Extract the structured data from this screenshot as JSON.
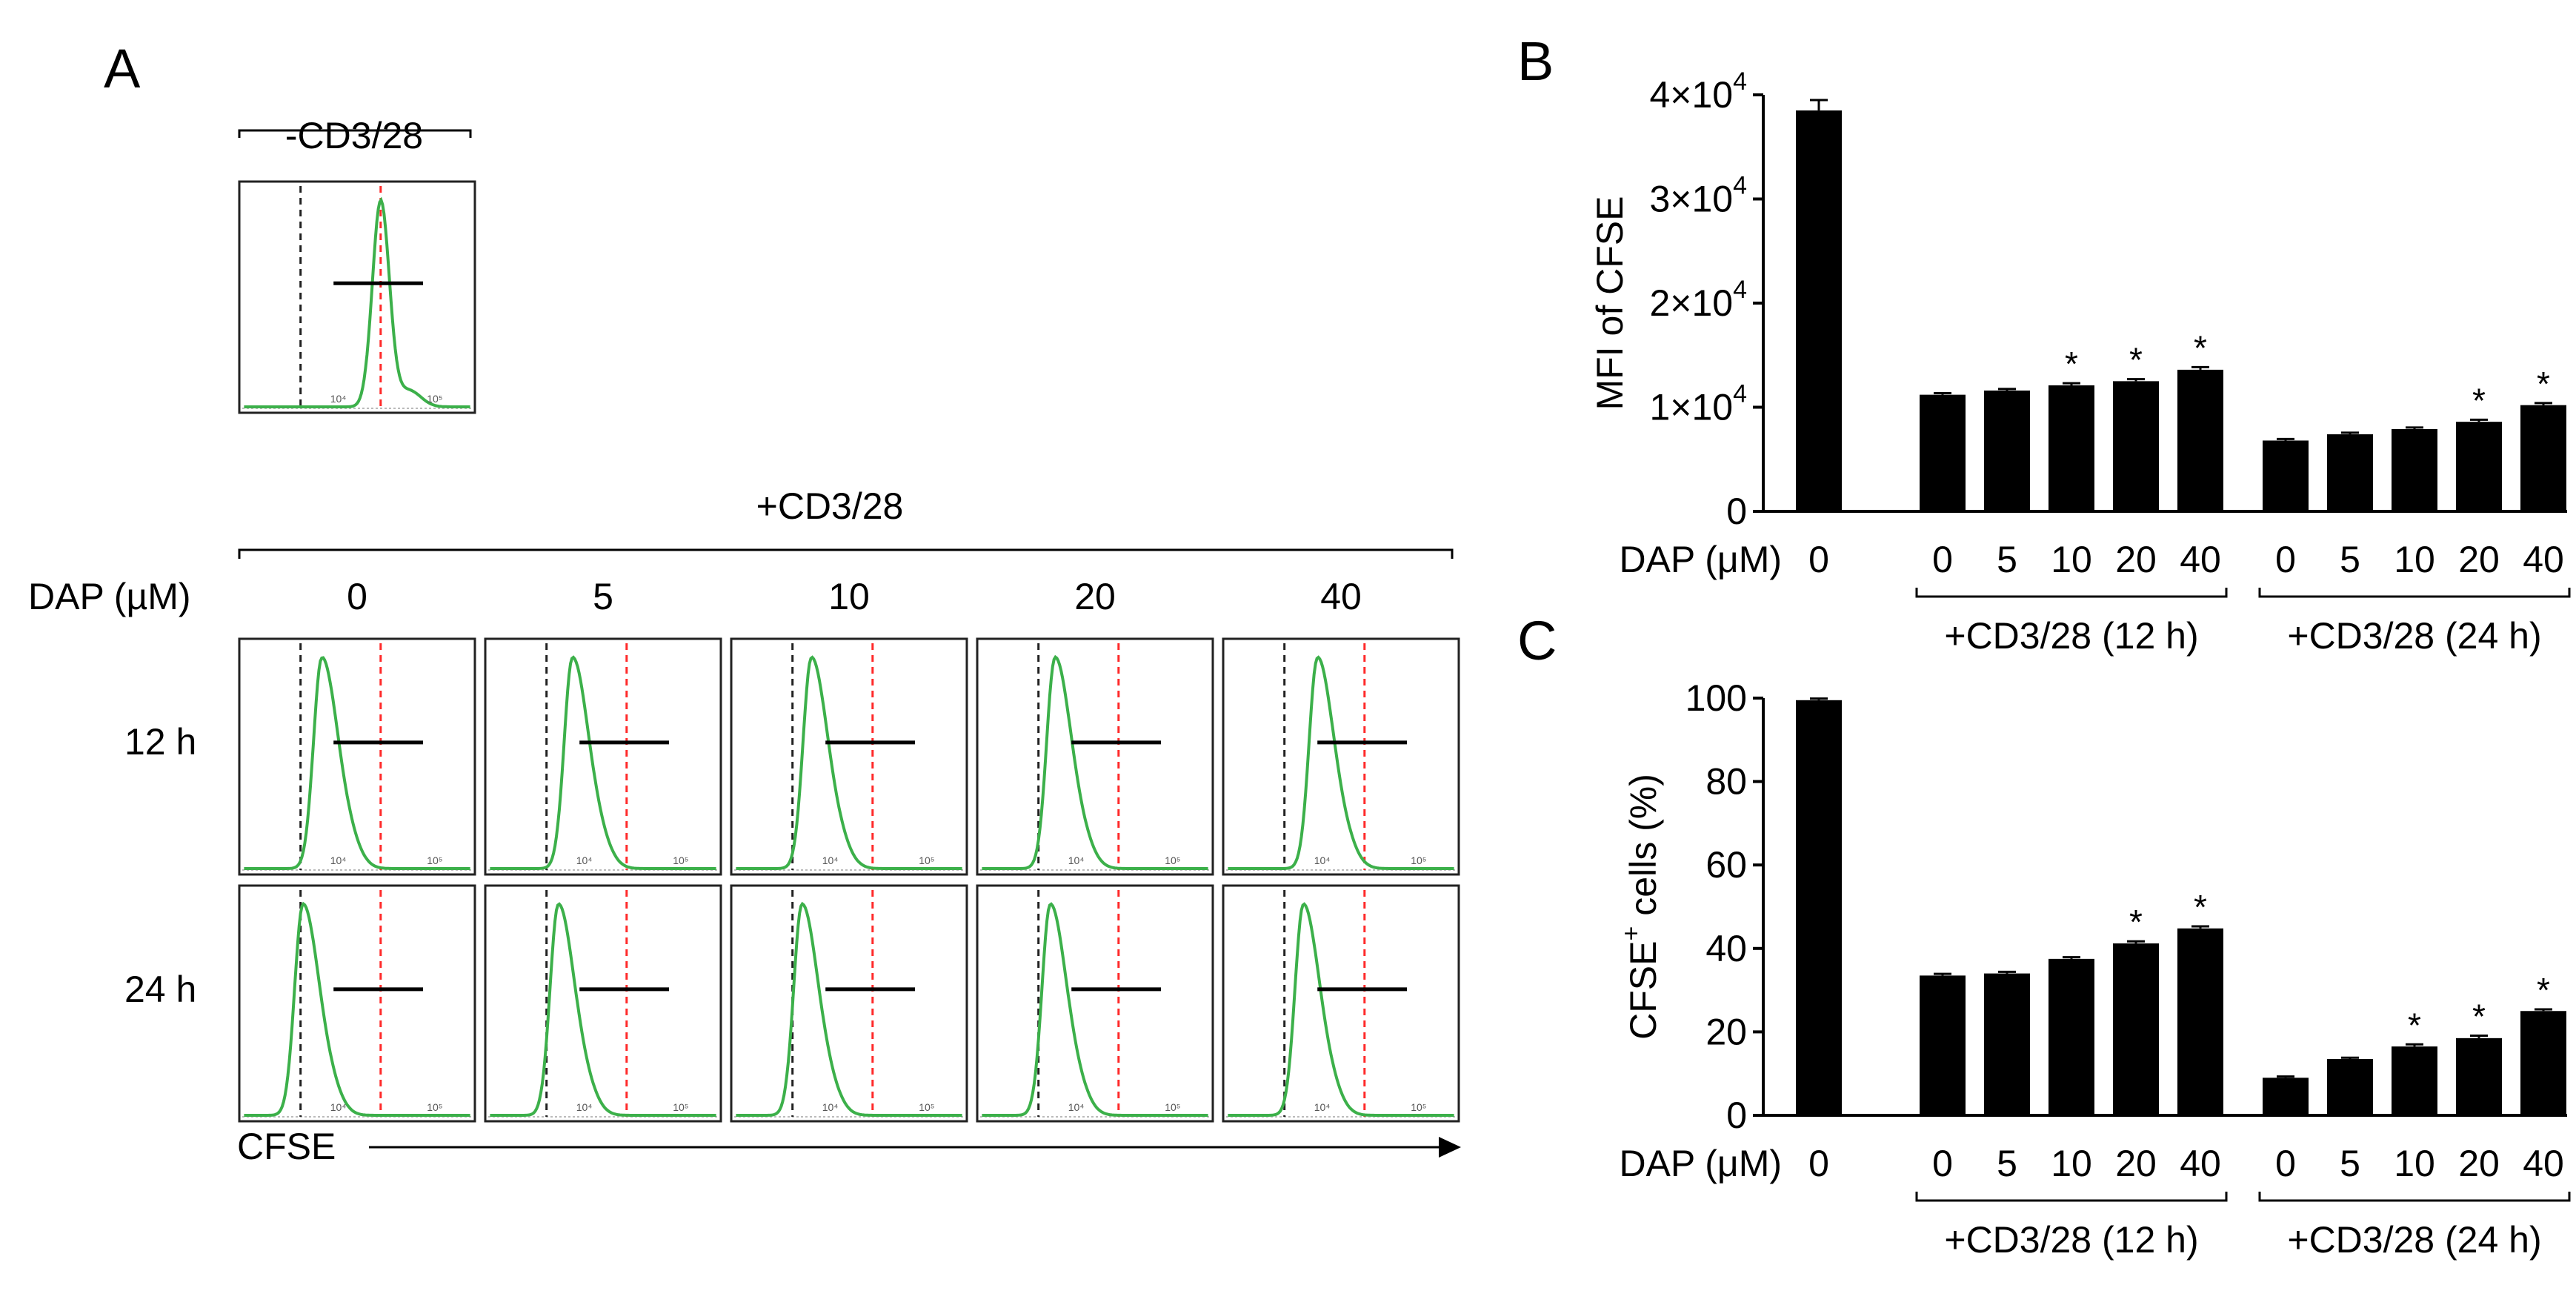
{
  "panels": {
    "a": "A",
    "b": "B",
    "c": "C"
  },
  "histogram": {
    "unstim_title": "-CD3/28",
    "stim_title": "+CD3/28",
    "dose_label": "DAP (µM)",
    "doses": [
      "0",
      "5",
      "10",
      "20",
      "40"
    ],
    "times": [
      "12 h",
      "24 h"
    ],
    "x_axis_label": "CFSE",
    "axis_ticks": [
      "10⁴",
      "10⁵"
    ],
    "colors": {
      "trace": "#3cb04a",
      "ref_line": "#ff2a2a",
      "neg_line": "#222222"
    }
  },
  "chart_data": [
    {
      "type": "bar",
      "panel": "B",
      "ylabel": "MFI of CFSE",
      "ylim": [
        0,
        40000
      ],
      "yticks": [
        {
          "value": 0,
          "base": "0",
          "exp": ""
        },
        {
          "value": 10000,
          "base": "1×10",
          "exp": "4"
        },
        {
          "value": 20000,
          "base": "2×10",
          "exp": "4"
        },
        {
          "value": 30000,
          "base": "3×10",
          "exp": "4"
        },
        {
          "value": 40000,
          "base": "4×10",
          "exp": "4"
        }
      ],
      "xlabel": "DAP (μM)",
      "categories": [
        "0",
        "0",
        "5",
        "10",
        "20",
        "40",
        "0",
        "5",
        "10",
        "20",
        "40"
      ],
      "values": [
        38500,
        11200,
        11600,
        12100,
        12500,
        13600,
        6800,
        7400,
        7900,
        8600,
        10200
      ],
      "errors": [
        1000,
        150,
        150,
        200,
        200,
        250,
        150,
        150,
        150,
        200,
        200
      ],
      "significant": [
        false,
        false,
        false,
        true,
        true,
        true,
        false,
        false,
        false,
        true,
        true
      ],
      "star": "*",
      "groups": [
        {
          "label": "+CD3/28 (12 h)",
          "from": 1,
          "to": 5
        },
        {
          "label": "+CD3/28 (24 h)",
          "from": 6,
          "to": 10
        }
      ]
    },
    {
      "type": "bar",
      "panel": "C",
      "ylabel": "CFSE",
      "ylabel_sup": "+",
      "ylabel_tail": " cells (%)",
      "ylim": [
        0,
        100
      ],
      "yticks": [
        {
          "value": 0,
          "base": "0",
          "exp": ""
        },
        {
          "value": 20,
          "base": "20",
          "exp": ""
        },
        {
          "value": 40,
          "base": "40",
          "exp": ""
        },
        {
          "value": 60,
          "base": "60",
          "exp": ""
        },
        {
          "value": 80,
          "base": "80",
          "exp": ""
        },
        {
          "value": 100,
          "base": "100",
          "exp": ""
        }
      ],
      "xlabel": "DAP (μM)",
      "categories": [
        "0",
        "0",
        "5",
        "10",
        "20",
        "40",
        "0",
        "5",
        "10",
        "20",
        "40"
      ],
      "values": [
        99.5,
        33.5,
        34,
        37.5,
        41.2,
        44.8,
        9,
        13.5,
        16.5,
        18.5,
        25
      ],
      "errors": [
        0.4,
        0.4,
        0.4,
        0.4,
        0.5,
        0.5,
        0.3,
        0.3,
        0.5,
        0.6,
        0.4
      ],
      "significant": [
        false,
        false,
        false,
        false,
        true,
        true,
        false,
        false,
        true,
        true,
        true
      ],
      "star": "*",
      "groups": [
        {
          "label": "+CD3/28 (12 h)",
          "from": 1,
          "to": 5
        },
        {
          "label": "+CD3/28 (24 h)",
          "from": 6,
          "to": 10
        }
      ]
    }
  ]
}
